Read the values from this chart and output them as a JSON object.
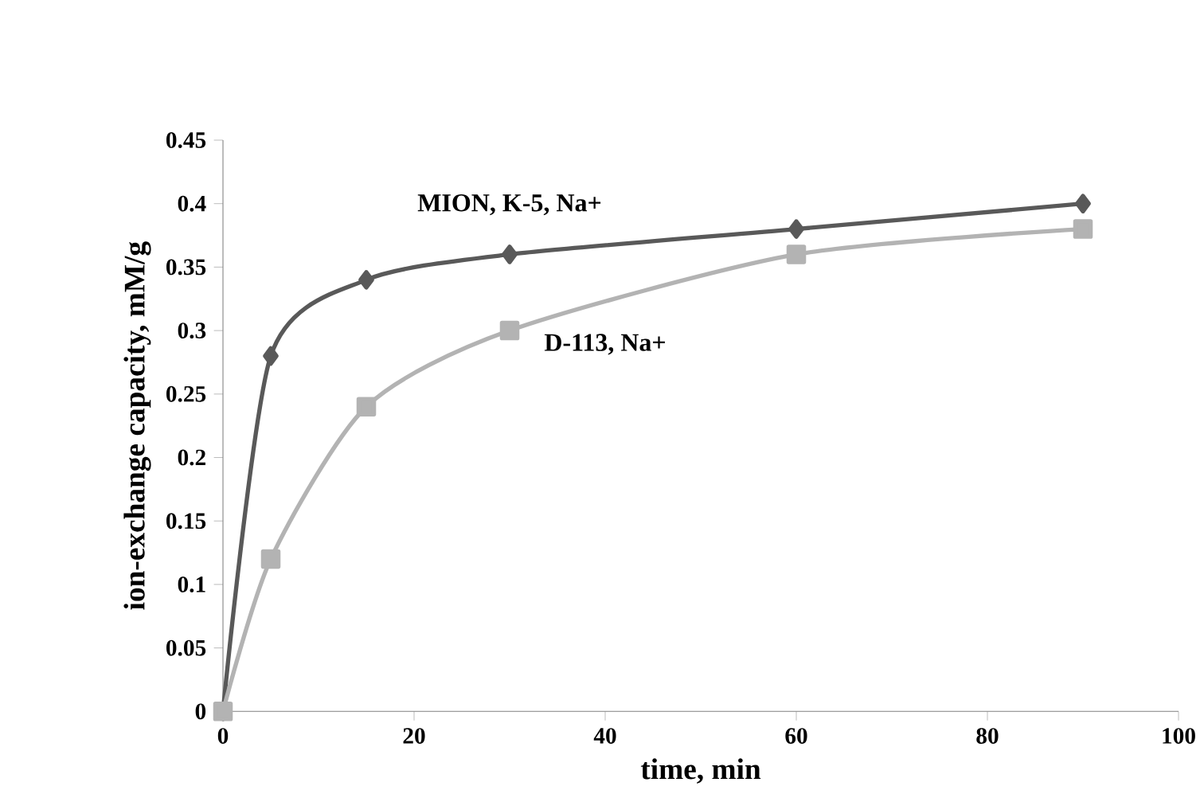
{
  "chart_data": {
    "type": "line",
    "xlabel": "time, min",
    "ylabel": "ion-exchange capacity, mM/g",
    "x": [
      0,
      5,
      15,
      30,
      60,
      90
    ],
    "series": [
      {
        "name": "MION, K-5, Na+",
        "color": "#595959",
        "marker": "diamond",
        "values": [
          0,
          0.28,
          0.34,
          0.36,
          0.38,
          0.4
        ]
      },
      {
        "name": "D-113, Na+",
        "color": "#b3b3b3",
        "marker": "square",
        "values": [
          0,
          0.12,
          0.24,
          0.3,
          0.36,
          0.38
        ]
      }
    ],
    "xlim": [
      0,
      100
    ],
    "xticks": [
      0,
      20,
      40,
      60,
      80,
      100
    ],
    "ylim": [
      0,
      0.45
    ],
    "yticks": [
      0,
      0.05,
      0.1,
      0.15,
      0.2,
      0.25,
      0.3,
      0.35,
      0.4,
      0.45
    ],
    "grid": false,
    "legend": false
  }
}
